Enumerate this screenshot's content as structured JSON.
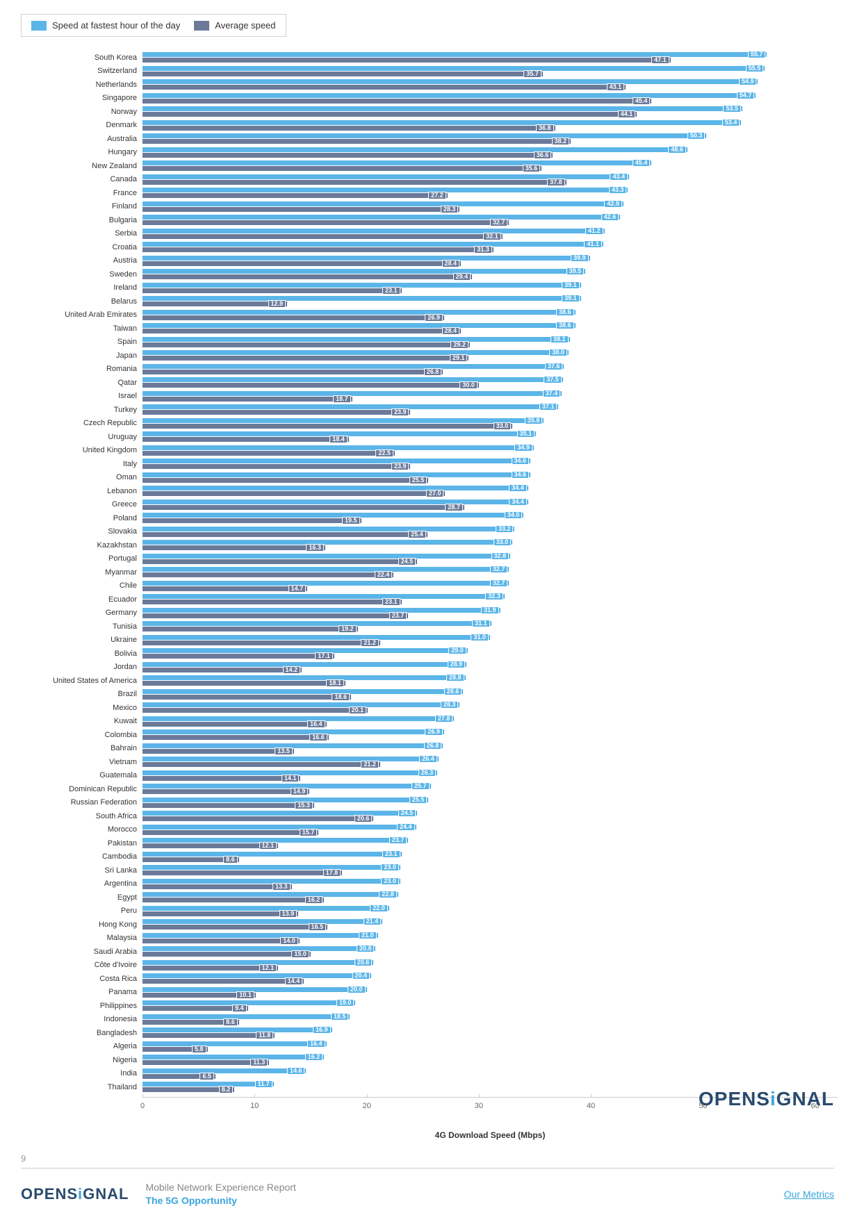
{
  "legend": {
    "series1": {
      "label": "Speed at fastest hour of the day",
      "color": "#5bb5e8"
    },
    "series2": {
      "label": "Average speed",
      "color": "#6b7a99"
    }
  },
  "chart": {
    "type": "bar",
    "xlabel": "4G Download Speed (Mbps)",
    "xmax": 62,
    "xticks": [
      0,
      10,
      20,
      30,
      40,
      50,
      60
    ],
    "bar_colors": {
      "fast": "#5bb5e8",
      "avg": "#6b7a99"
    },
    "background": "#ffffff",
    "rows": [
      {
        "country": "South Korea",
        "fast": 55.7,
        "avg": 47.1
      },
      {
        "country": "Switzerland",
        "fast": 55.5,
        "avg": 35.7
      },
      {
        "country": "Netherlands",
        "fast": 54.9,
        "avg": 43.1
      },
      {
        "country": "Singapore",
        "fast": 54.7,
        "avg": 45.4
      },
      {
        "country": "Norway",
        "fast": 53.5,
        "avg": 44.1
      },
      {
        "country": "Denmark",
        "fast": 53.4,
        "avg": 36.8
      },
      {
        "country": "Australia",
        "fast": 50.3,
        "avg": 38.2
      },
      {
        "country": "Hungary",
        "fast": 48.6,
        "avg": 36.6
      },
      {
        "country": "New Zealand",
        "fast": 45.4,
        "avg": 35.6
      },
      {
        "country": "Canada",
        "fast": 43.4,
        "avg": 37.8
      },
      {
        "country": "France",
        "fast": 43.3,
        "avg": 27.2
      },
      {
        "country": "Finland",
        "fast": 42.9,
        "avg": 28.3
      },
      {
        "country": "Bulgaria",
        "fast": 42.6,
        "avg": 32.7
      },
      {
        "country": "Serbia",
        "fast": 41.2,
        "avg": 32.1
      },
      {
        "country": "Croatia",
        "fast": 41.1,
        "avg": 31.3
      },
      {
        "country": "Austria",
        "fast": 39.9,
        "avg": 28.4
      },
      {
        "country": "Sweden",
        "fast": 39.5,
        "avg": 29.4
      },
      {
        "country": "Ireland",
        "fast": 39.1,
        "avg": 23.1
      },
      {
        "country": "Belarus",
        "fast": 39.1,
        "avg": 12.9
      },
      {
        "country": "United Arab Emirates",
        "fast": 38.6,
        "avg": 26.9
      },
      {
        "country": "Taiwan",
        "fast": 38.6,
        "avg": 28.4
      },
      {
        "country": "Spain",
        "fast": 38.1,
        "avg": 29.2
      },
      {
        "country": "Japan",
        "fast": 38.0,
        "avg": 29.1
      },
      {
        "country": "Romania",
        "fast": 37.6,
        "avg": 26.8
      },
      {
        "country": "Qatar",
        "fast": 37.5,
        "avg": 30.0
      },
      {
        "country": "Israel",
        "fast": 37.4,
        "avg": 18.7
      },
      {
        "country": "Turkey",
        "fast": 37.1,
        "avg": 23.9
      },
      {
        "country": "Czech Republic",
        "fast": 35.8,
        "avg": 33.0
      },
      {
        "country": "Uruguay",
        "fast": 35.1,
        "avg": 18.4
      },
      {
        "country": "United Kingdom",
        "fast": 34.9,
        "avg": 22.5
      },
      {
        "country": "Italy",
        "fast": 34.6,
        "avg": 23.9
      },
      {
        "country": "Oman",
        "fast": 34.6,
        "avg": 25.5
      },
      {
        "country": "Lebanon",
        "fast": 34.4,
        "avg": 27.0
      },
      {
        "country": "Greece",
        "fast": 34.4,
        "avg": 28.7
      },
      {
        "country": "Poland",
        "fast": 34.0,
        "avg": 19.5
      },
      {
        "country": "Slovakia",
        "fast": 33.2,
        "avg": 25.4
      },
      {
        "country": "Kazakhstan",
        "fast": 33.0,
        "avg": 16.3
      },
      {
        "country": "Portugal",
        "fast": 32.8,
        "avg": 24.5
      },
      {
        "country": "Myanmar",
        "fast": 32.7,
        "avg": 22.4
      },
      {
        "country": "Chile",
        "fast": 32.7,
        "avg": 14.7
      },
      {
        "country": "Ecuador",
        "fast": 32.3,
        "avg": 23.1
      },
      {
        "country": "Germany",
        "fast": 31.9,
        "avg": 23.7
      },
      {
        "country": "Tunisia",
        "fast": 31.1,
        "avg": 19.2
      },
      {
        "country": "Ukraine",
        "fast": 31.0,
        "avg": 21.2
      },
      {
        "country": "Bolivia",
        "fast": 29.0,
        "avg": 17.1
      },
      {
        "country": "Jordan",
        "fast": 28.9,
        "avg": 14.2
      },
      {
        "country": "United States of America",
        "fast": 28.8,
        "avg": 18.1
      },
      {
        "country": "Brazil",
        "fast": 28.6,
        "avg": 18.6
      },
      {
        "country": "Mexico",
        "fast": 28.3,
        "avg": 20.1
      },
      {
        "country": "Kuwait",
        "fast": 27.8,
        "avg": 16.4
      },
      {
        "country": "Colombia",
        "fast": 26.9,
        "avg": 16.6
      },
      {
        "country": "Bahrain",
        "fast": 26.8,
        "avg": 13.5
      },
      {
        "country": "Vietnam",
        "fast": 26.4,
        "avg": 21.2
      },
      {
        "country": "Guatemala",
        "fast": 26.3,
        "avg": 14.1
      },
      {
        "country": "Dominican Republic",
        "fast": 25.7,
        "avg": 14.9
      },
      {
        "country": "Russian Federation",
        "fast": 25.5,
        "avg": 15.3
      },
      {
        "country": "South Africa",
        "fast": 24.5,
        "avg": 20.6
      },
      {
        "country": "Morocco",
        "fast": 24.4,
        "avg": 15.7
      },
      {
        "country": "Pakistan",
        "fast": 23.7,
        "avg": 12.1
      },
      {
        "country": "Cambodia",
        "fast": 23.1,
        "avg": 8.6
      },
      {
        "country": "Sri Lanka",
        "fast": 23.0,
        "avg": 17.8
      },
      {
        "country": "Argentina",
        "fast": 23.0,
        "avg": 13.3
      },
      {
        "country": "Egypt",
        "fast": 22.8,
        "avg": 16.2
      },
      {
        "country": "Peru",
        "fast": 22.0,
        "avg": 13.9
      },
      {
        "country": "Hong Kong",
        "fast": 21.4,
        "avg": 16.5
      },
      {
        "country": "Malaysia",
        "fast": 21.0,
        "avg": 14.0
      },
      {
        "country": "Saudi Arabia",
        "fast": 20.8,
        "avg": 15.0
      },
      {
        "country": "Côte d'Ivoire",
        "fast": 20.6,
        "avg": 12.1
      },
      {
        "country": "Costa Rica",
        "fast": 20.4,
        "avg": 14.4
      },
      {
        "country": "Panama",
        "fast": 20.0,
        "avg": 10.1
      },
      {
        "country": "Philippines",
        "fast": 19.0,
        "avg": 9.4
      },
      {
        "country": "Indonesia",
        "fast": 18.5,
        "avg": 8.6
      },
      {
        "country": "Bangladesh",
        "fast": 16.9,
        "avg": 11.8
      },
      {
        "country": "Algeria",
        "fast": 16.4,
        "avg": 5.8
      },
      {
        "country": "Nigeria",
        "fast": 16.2,
        "avg": 11.3
      },
      {
        "country": "India",
        "fast": 14.6,
        "avg": 6.5
      },
      {
        "country": "Thailand",
        "fast": 11.7,
        "avg": 8.2
      }
    ]
  },
  "watermark": "OPENSIGNAL",
  "footer": {
    "page": "9",
    "logo": "OPENSIGNAL",
    "line1": "Mobile Network Experience Report",
    "line2": "The 5G Opportunity",
    "link": "Our Metrics"
  }
}
